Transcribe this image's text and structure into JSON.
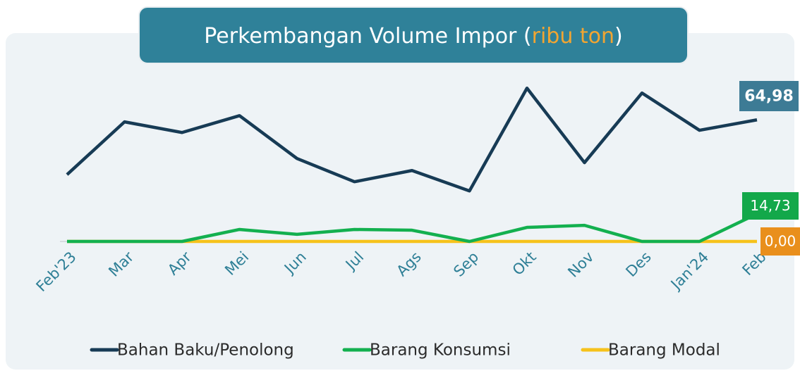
{
  "chart_data": {
    "type": "line",
    "title": [
      "Perkembangan Volume Impor (",
      "ribu ton",
      ")"
    ],
    "categories": [
      "Feb'23",
      "Mar",
      "Apr",
      "Mei",
      "Jun",
      "Jul",
      "Ags",
      "Sep",
      "Okt",
      "Nov",
      "Des",
      "Jan'24",
      "Feb"
    ],
    "ylim": [
      0,
      85
    ],
    "series": [
      {
        "name": "Bahan Baku/Penolong",
        "color": "#173b55",
        "label_color": "#3d7b95",
        "values": [
          35.7,
          63.9,
          58.2,
          67.2,
          44.3,
          31.9,
          37.9,
          27.0,
          81.9,
          42.1,
          79.3,
          59.4,
          64.98
        ],
        "end_label": "64,98"
      },
      {
        "name": "Barang Konsumsi",
        "color": "#13b04f",
        "label_color": "#13a84a",
        "values": [
          0,
          0,
          0,
          6.4,
          3.8,
          6.4,
          6.0,
          0,
          7.5,
          8.6,
          0,
          0,
          14.73
        ],
        "end_label": "14,73"
      },
      {
        "name": "Barang Modal",
        "color": "#f6c21b",
        "label_color": "#e98f1c",
        "values": [
          0,
          0,
          0,
          0,
          0,
          0,
          0,
          0,
          0,
          0,
          0,
          0,
          0
        ],
        "end_label": "0,00"
      }
    ]
  }
}
